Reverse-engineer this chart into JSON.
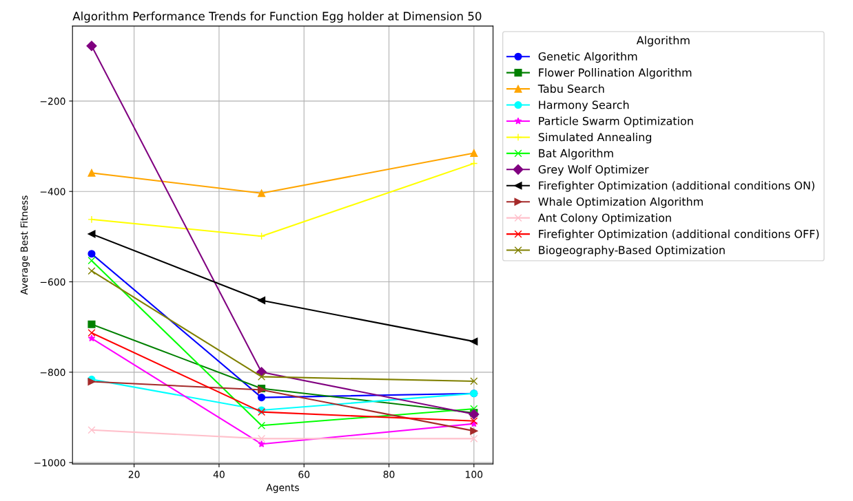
{
  "chart_data": {
    "type": "line",
    "title": "Algorithm Performance Trends for Function Egg holder at Dimension 50",
    "xlabel": "Agents",
    "ylabel": "Average Best Fitness",
    "legend_title": "Algorithm",
    "legend": "right",
    "grid": true,
    "x": [
      10,
      50,
      100
    ],
    "xlim": [
      5.5,
      104.5
    ],
    "xticks": [
      20,
      40,
      60,
      80,
      100
    ],
    "ylim": [
      -1003,
      -34
    ],
    "yticks": [
      {
        "value": -1000,
        "label": "−1000"
      },
      {
        "value": -800,
        "label": "−800"
      },
      {
        "value": -600,
        "label": "−600"
      },
      {
        "value": -400,
        "label": "−400"
      },
      {
        "value": -200,
        "label": "−200"
      }
    ],
    "series": [
      {
        "name": "Genetic Algorithm",
        "color": "#0000ff",
        "marker": "circle",
        "values": [
          -538,
          -856,
          -847
        ]
      },
      {
        "name": "Flower Pollination Algorithm",
        "color": "#008000",
        "marker": "square",
        "values": [
          -694,
          -836,
          -890
        ]
      },
      {
        "name": "Tabu Search",
        "color": "#ffa500",
        "marker": "triangle",
        "values": [
          -359,
          -404,
          -315
        ]
      },
      {
        "name": "Harmony Search",
        "color": "#00ffff",
        "marker": "circle",
        "values": [
          -816,
          -884,
          -847
        ]
      },
      {
        "name": "Particle Swarm Optimization",
        "color": "#ff00ff",
        "marker": "star",
        "values": [
          -725,
          -959,
          -914
        ]
      },
      {
        "name": "Simulated Annealing",
        "color": "#ffff00",
        "marker": "plus",
        "values": [
          -462,
          -499,
          -338
        ]
      },
      {
        "name": "Bat Algorithm",
        "color": "#00ff00",
        "marker": "cross",
        "values": [
          -553,
          -918,
          -881
        ]
      },
      {
        "name": "Grey Wolf Optimizer",
        "color": "#800080",
        "marker": "diamond",
        "values": [
          -78,
          -800,
          -893
        ]
      },
      {
        "name": "Firefighter Optimization (additional conditions ON)",
        "color": "#000000",
        "marker": "triangle-left",
        "values": [
          -494,
          -641,
          -732
        ]
      },
      {
        "name": "Whale Optimization Algorithm",
        "color": "#a52a2a",
        "marker": "triangle-right",
        "values": [
          -821,
          -839,
          -930
        ]
      },
      {
        "name": "Ant Colony Optimization",
        "color": "#ffc0cb",
        "marker": "cross",
        "values": [
          -928,
          -947,
          -947
        ]
      },
      {
        "name": "Firefighter Optimization (additional conditions OFF)",
        "color": "#ff0000",
        "marker": "cross",
        "values": [
          -713,
          -888,
          -908
        ]
      },
      {
        "name": "Biogeography-Based Optimization",
        "color": "#808000",
        "marker": "cross",
        "values": [
          -576,
          -810,
          -820
        ]
      }
    ]
  }
}
